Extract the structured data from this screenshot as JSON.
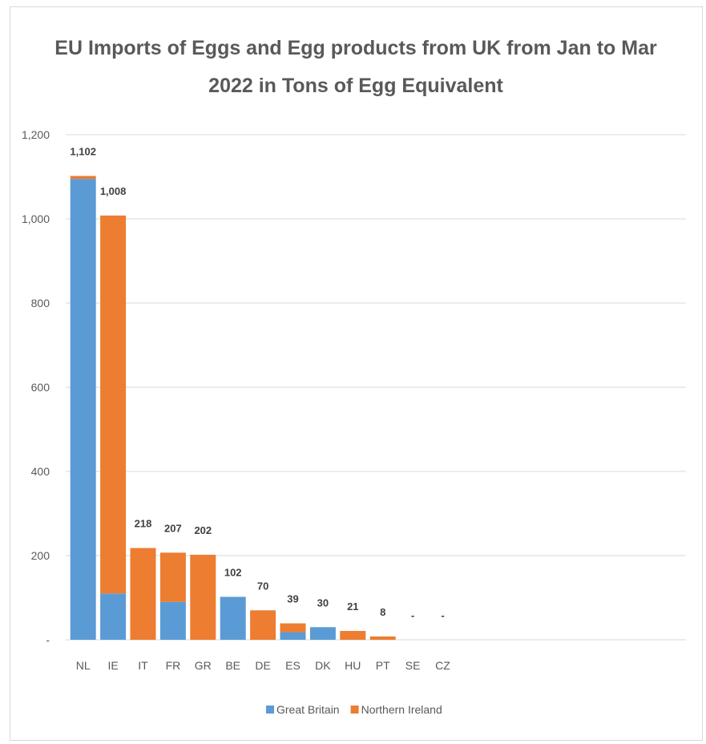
{
  "chart_data": {
    "type": "bar",
    "stacked": true,
    "title_lines": [
      "EU Imports of Eggs and Egg products from UK from Jan to Mar",
      "2022 in Tons of Egg Equivalent"
    ],
    "categories": [
      "NL",
      "IE",
      "IT",
      "FR",
      "GR",
      "BE",
      "DE",
      "ES",
      "DK",
      "HU",
      "PT",
      "SE",
      "CZ"
    ],
    "series": [
      {
        "name": "Great Britain",
        "color": "#5b9bd5",
        "values": [
          1095,
          110,
          0,
          90,
          0,
          102,
          0,
          18,
          30,
          0,
          0,
          0,
          0
        ]
      },
      {
        "name": "Northern Ireland",
        "color": "#ed7d31",
        "values": [
          7,
          898,
          218,
          117,
          202,
          0,
          70,
          21,
          0,
          21,
          8,
          0,
          0
        ]
      }
    ],
    "total_labels": [
      "1,102",
      "1,008",
      "218",
      "207",
      "202",
      "102",
      "70",
      "39",
      "30",
      "21",
      "8",
      "-",
      "-"
    ],
    "ylim": [
      0,
      1200
    ],
    "y_ticks": [
      {
        "value": 0,
        "label": "-"
      },
      {
        "value": 200,
        "label": "200"
      },
      {
        "value": 400,
        "label": "400"
      },
      {
        "value": 600,
        "label": "600"
      },
      {
        "value": 800,
        "label": "800"
      },
      {
        "value": 1000,
        "label": "1,000"
      },
      {
        "value": 1200,
        "label": "1,200"
      }
    ],
    "grid": true,
    "legend_position": "bottom"
  }
}
